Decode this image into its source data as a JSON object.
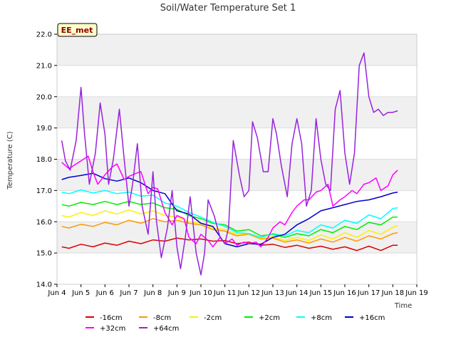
{
  "chart_data": {
    "type": "line",
    "title": "Soil/Water Temperature Set 1",
    "xlabel": "Time",
    "ylabel": "Temperature (C)",
    "badge": "EE_met",
    "xlim": [
      4,
      19
    ],
    "ylim": [
      14.0,
      22.0
    ],
    "x_tick_values": [
      4,
      5,
      6,
      7,
      8,
      9,
      10,
      11,
      12,
      13,
      14,
      15,
      16,
      17,
      18,
      19
    ],
    "x_tick_labels": [
      "Jun 4",
      "Jun 5",
      "Jun 6",
      "Jun 7",
      "Jun 8",
      "Jun 9",
      "Jun 10",
      "Jun 11",
      "Jun 12",
      "Jun 13",
      "Jun 14",
      "Jun 15",
      "Jun 16",
      "Jun 17",
      "Jun 18",
      "Jun 19"
    ],
    "y_tick_values": [
      14,
      15,
      16,
      17,
      18,
      19,
      20,
      21,
      22
    ],
    "y_tick_labels": [
      "14.0",
      "15.0",
      "16.0",
      "17.0",
      "18.0",
      "19.0",
      "20.0",
      "21.0",
      "22.0"
    ],
    "grid": true,
    "legend_position": "bottom",
    "series": [
      {
        "name": "-16cm",
        "color": "#dd0000",
        "x": [
          4.2,
          4.5,
          5.0,
          5.5,
          6.0,
          6.5,
          7.0,
          7.5,
          8.0,
          8.5,
          9.0,
          9.5,
          10.0,
          10.5,
          11.0,
          11.5,
          12.0,
          12.5,
          13.0,
          13.5,
          14.0,
          14.5,
          15.0,
          15.5,
          16.0,
          16.5,
          17.0,
          17.5,
          18.0,
          18.2
        ],
        "y": [
          15.2,
          15.15,
          15.28,
          15.2,
          15.32,
          15.25,
          15.38,
          15.3,
          15.42,
          15.38,
          15.48,
          15.42,
          15.45,
          15.38,
          15.4,
          15.3,
          15.35,
          15.25,
          15.28,
          15.18,
          15.25,
          15.15,
          15.22,
          15.12,
          15.2,
          15.08,
          15.22,
          15.08,
          15.25,
          15.25
        ]
      },
      {
        "name": "-8cm",
        "color": "#ff9900",
        "x": [
          4.2,
          4.5,
          5.0,
          5.5,
          6.0,
          6.5,
          7.0,
          7.5,
          8.0,
          8.5,
          9.0,
          9.5,
          10.0,
          10.5,
          11.0,
          11.5,
          12.0,
          12.5,
          13.0,
          13.5,
          14.0,
          14.5,
          15.0,
          15.5,
          16.0,
          16.5,
          17.0,
          17.5,
          18.0,
          18.2
        ],
        "y": [
          15.85,
          15.8,
          15.92,
          15.85,
          15.98,
          15.9,
          16.05,
          15.95,
          16.1,
          16.0,
          16.05,
          15.95,
          15.9,
          15.75,
          15.7,
          15.55,
          15.6,
          15.45,
          15.48,
          15.35,
          15.42,
          15.32,
          15.45,
          15.35,
          15.5,
          15.38,
          15.55,
          15.45,
          15.62,
          15.65
        ]
      },
      {
        "name": "-2cm",
        "color": "#ffee00",
        "x": [
          4.2,
          4.5,
          5.0,
          5.5,
          6.0,
          6.5,
          7.0,
          7.5,
          8.0,
          8.5,
          9.0,
          9.5,
          10.0,
          10.5,
          11.0,
          11.5,
          12.0,
          12.5,
          13.0,
          13.5,
          14.0,
          14.5,
          15.0,
          15.5,
          16.0,
          16.5,
          17.0,
          17.5,
          18.0,
          18.2
        ],
        "y": [
          16.2,
          16.15,
          16.3,
          16.2,
          16.35,
          16.25,
          16.38,
          16.25,
          16.35,
          16.2,
          16.15,
          16.0,
          15.95,
          15.8,
          15.75,
          15.6,
          15.62,
          15.48,
          15.52,
          15.4,
          15.5,
          15.4,
          15.58,
          15.45,
          15.65,
          15.5,
          15.72,
          15.6,
          15.82,
          15.88
        ]
      },
      {
        "name": "+2cm",
        "color": "#00ee00",
        "x": [
          4.2,
          4.5,
          5.0,
          5.5,
          6.0,
          6.5,
          7.0,
          7.5,
          8.0,
          8.5,
          9.0,
          9.5,
          10.0,
          10.5,
          11.0,
          11.5,
          12.0,
          12.5,
          13.0,
          13.5,
          14.0,
          14.5,
          15.0,
          15.5,
          16.0,
          16.5,
          17.0,
          17.5,
          18.0,
          18.2
        ],
        "y": [
          16.55,
          16.5,
          16.62,
          16.55,
          16.65,
          16.55,
          16.65,
          16.55,
          16.6,
          16.45,
          16.4,
          16.2,
          16.1,
          15.95,
          15.9,
          15.7,
          15.75,
          15.55,
          15.6,
          15.5,
          15.62,
          15.55,
          15.75,
          15.65,
          15.85,
          15.75,
          15.98,
          15.9,
          16.15,
          16.15
        ]
      },
      {
        "name": "+8cm",
        "color": "#00ffff",
        "x": [
          4.2,
          4.5,
          5.0,
          5.5,
          6.0,
          6.5,
          7.0,
          7.5,
          8.0,
          8.5,
          9.0,
          9.5,
          10.0,
          10.5,
          11.0,
          11.5,
          12.0,
          12.5,
          13.0,
          13.5,
          14.0,
          14.5,
          15.0,
          15.5,
          16.0,
          16.5,
          17.0,
          17.5,
          18.0,
          18.2
        ],
        "y": [
          16.95,
          16.9,
          17.02,
          16.92,
          17.0,
          16.9,
          16.95,
          16.82,
          16.85,
          16.6,
          16.5,
          16.3,
          16.15,
          15.98,
          15.85,
          15.65,
          15.62,
          15.5,
          15.62,
          15.55,
          15.72,
          15.65,
          15.9,
          15.8,
          16.05,
          15.95,
          16.22,
          16.1,
          16.42,
          16.45
        ]
      },
      {
        "name": "+16cm",
        "color": "#0000cc",
        "x": [
          4.2,
          4.5,
          5.0,
          5.5,
          6.0,
          6.5,
          7.0,
          7.5,
          8.0,
          8.5,
          9.0,
          9.5,
          10.0,
          10.5,
          11.0,
          11.5,
          12.0,
          12.5,
          13.0,
          13.5,
          14.0,
          14.5,
          15.0,
          15.5,
          16.0,
          16.5,
          17.0,
          17.5,
          18.0,
          18.2
        ],
        "y": [
          17.35,
          17.42,
          17.48,
          17.55,
          17.38,
          17.3,
          17.4,
          17.25,
          17.0,
          16.9,
          16.35,
          16.25,
          15.95,
          15.85,
          15.3,
          15.2,
          15.3,
          15.28,
          15.5,
          15.6,
          15.9,
          16.1,
          16.35,
          16.45,
          16.55,
          16.65,
          16.7,
          16.8,
          16.92,
          16.95
        ]
      },
      {
        "name": "+32cm",
        "color": "#ff00ff",
        "x": [
          4.2,
          4.5,
          4.8,
          5.0,
          5.3,
          5.5,
          5.7,
          6.0,
          6.3,
          6.5,
          6.8,
          7.0,
          7.3,
          7.5,
          7.8,
          8.0,
          8.2,
          8.5,
          8.8,
          9.0,
          9.3,
          9.5,
          9.8,
          10.0,
          10.3,
          10.5,
          10.8,
          11.0,
          11.3,
          11.5,
          11.8,
          12.0,
          12.3,
          12.5,
          12.8,
          13.0,
          13.3,
          13.5,
          13.8,
          14.0,
          14.3,
          14.5,
          14.8,
          15.0,
          15.3,
          15.5,
          15.8,
          16.0,
          16.3,
          16.5,
          16.8,
          17.0,
          17.3,
          17.5,
          17.8,
          18.0,
          18.2
        ],
        "y": [
          17.9,
          17.7,
          17.85,
          17.95,
          18.1,
          17.6,
          17.2,
          17.5,
          17.75,
          17.85,
          17.35,
          17.45,
          17.55,
          17.6,
          16.9,
          17.1,
          17.05,
          16.3,
          15.9,
          16.2,
          16.1,
          15.5,
          15.3,
          15.6,
          15.4,
          15.2,
          15.5,
          15.3,
          15.45,
          15.25,
          15.35,
          15.3,
          15.35,
          15.2,
          15.5,
          15.8,
          16.0,
          15.9,
          16.3,
          16.5,
          16.7,
          16.7,
          16.95,
          17.0,
          17.2,
          16.5,
          16.7,
          16.8,
          17.0,
          16.9,
          17.2,
          17.25,
          17.4,
          17.0,
          17.15,
          17.5,
          17.65
        ]
      },
      {
        "name": "+64cm",
        "color": "#9922dd",
        "x": [
          4.2,
          4.35,
          4.55,
          4.8,
          5.0,
          5.15,
          5.35,
          5.6,
          5.8,
          6.0,
          6.15,
          6.35,
          6.6,
          6.8,
          7.0,
          7.15,
          7.35,
          7.55,
          7.8,
          8.0,
          8.15,
          8.35,
          8.6,
          8.8,
          9.0,
          9.15,
          9.35,
          9.55,
          9.8,
          10.0,
          10.15,
          10.3,
          10.55,
          10.8,
          11.0,
          11.15,
          11.35,
          11.6,
          11.8,
          12.0,
          12.15,
          12.35,
          12.6,
          12.8,
          13.0,
          13.15,
          13.35,
          13.6,
          13.8,
          14.0,
          14.2,
          14.4,
          14.6,
          14.8,
          15.0,
          15.2,
          15.4,
          15.6,
          15.8,
          16.0,
          16.2,
          16.4,
          16.6,
          16.8,
          17.0,
          17.2,
          17.4,
          17.6,
          17.8,
          18.0,
          18.2
        ],
        "y": [
          18.6,
          17.95,
          17.65,
          18.6,
          20.3,
          18.8,
          17.2,
          18.2,
          19.8,
          18.8,
          17.2,
          18.0,
          19.6,
          18.0,
          16.5,
          17.2,
          18.5,
          16.5,
          15.6,
          17.6,
          16.0,
          14.85,
          15.8,
          17.0,
          15.2,
          14.5,
          15.5,
          16.8,
          15.0,
          14.3,
          15.0,
          16.7,
          16.2,
          15.5,
          15.3,
          15.8,
          18.6,
          17.5,
          16.8,
          17.0,
          19.2,
          18.7,
          17.6,
          17.6,
          19.3,
          18.8,
          17.8,
          16.8,
          18.5,
          19.3,
          18.5,
          16.5,
          17.0,
          19.3,
          18.0,
          17.2,
          17.0,
          19.6,
          20.2,
          18.2,
          17.2,
          18.2,
          21.0,
          21.4,
          20.0,
          19.5,
          19.6,
          19.4,
          19.5,
          19.5,
          19.55
        ]
      }
    ]
  }
}
